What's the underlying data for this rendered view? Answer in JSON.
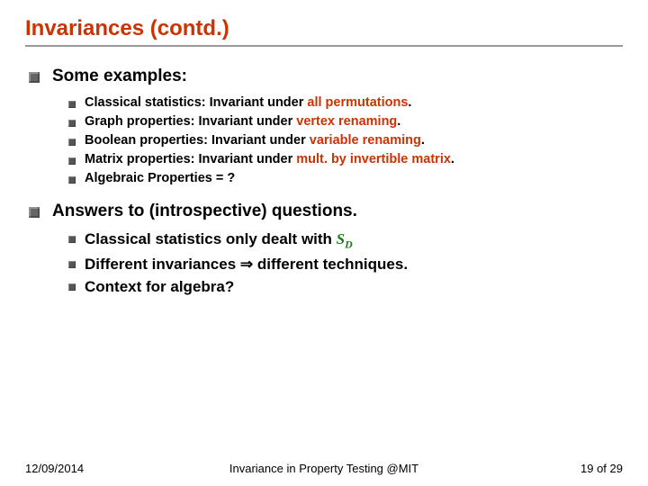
{
  "title": "Invariances (contd.)",
  "section1": {
    "heading": "Some examples:",
    "items": [
      {
        "pre": "Classical statistics: Invariant under ",
        "hl": "all permutations",
        "post": "."
      },
      {
        "pre": "Graph properties: Invariant under ",
        "hl": "vertex renaming",
        "post": "."
      },
      {
        "pre": "Boolean properties: Invariant under ",
        "hl": "variable renaming",
        "post": "."
      },
      {
        "pre": "Matrix properties: Invariant under ",
        "hl": "mult. by invertible matrix",
        "post": "."
      },
      {
        "pre": "Algebraic Properties = ?",
        "hl": "",
        "post": ""
      }
    ]
  },
  "section2": {
    "heading": "Answers to (introspective) questions.",
    "items": [
      {
        "pre": "Classical statistics only dealt with ",
        "math": true
      },
      {
        "pre": "Different invariances ⇒ different techniques."
      },
      {
        "pre": "Context for algebra?"
      }
    ]
  },
  "footer": {
    "date": "12/09/2014",
    "center": "Invariance in Property Testing @MIT",
    "page_cur": "19",
    "page_sep": " of ",
    "page_total": "29"
  },
  "colors": {
    "title": "#cc3300",
    "highlight": "#cc3300",
    "math": "#1a7a1a",
    "bullet_large": "#666666",
    "bullet_small": "#555555",
    "rule": "#999999",
    "background": "#ffffff"
  },
  "fonts": {
    "title_size_pt": 24,
    "l1_size_pt": 19,
    "l2_small_size_pt": 14.5,
    "l2_med_size_pt": 17,
    "footer_size_pt": 13,
    "family": "Verdana"
  }
}
